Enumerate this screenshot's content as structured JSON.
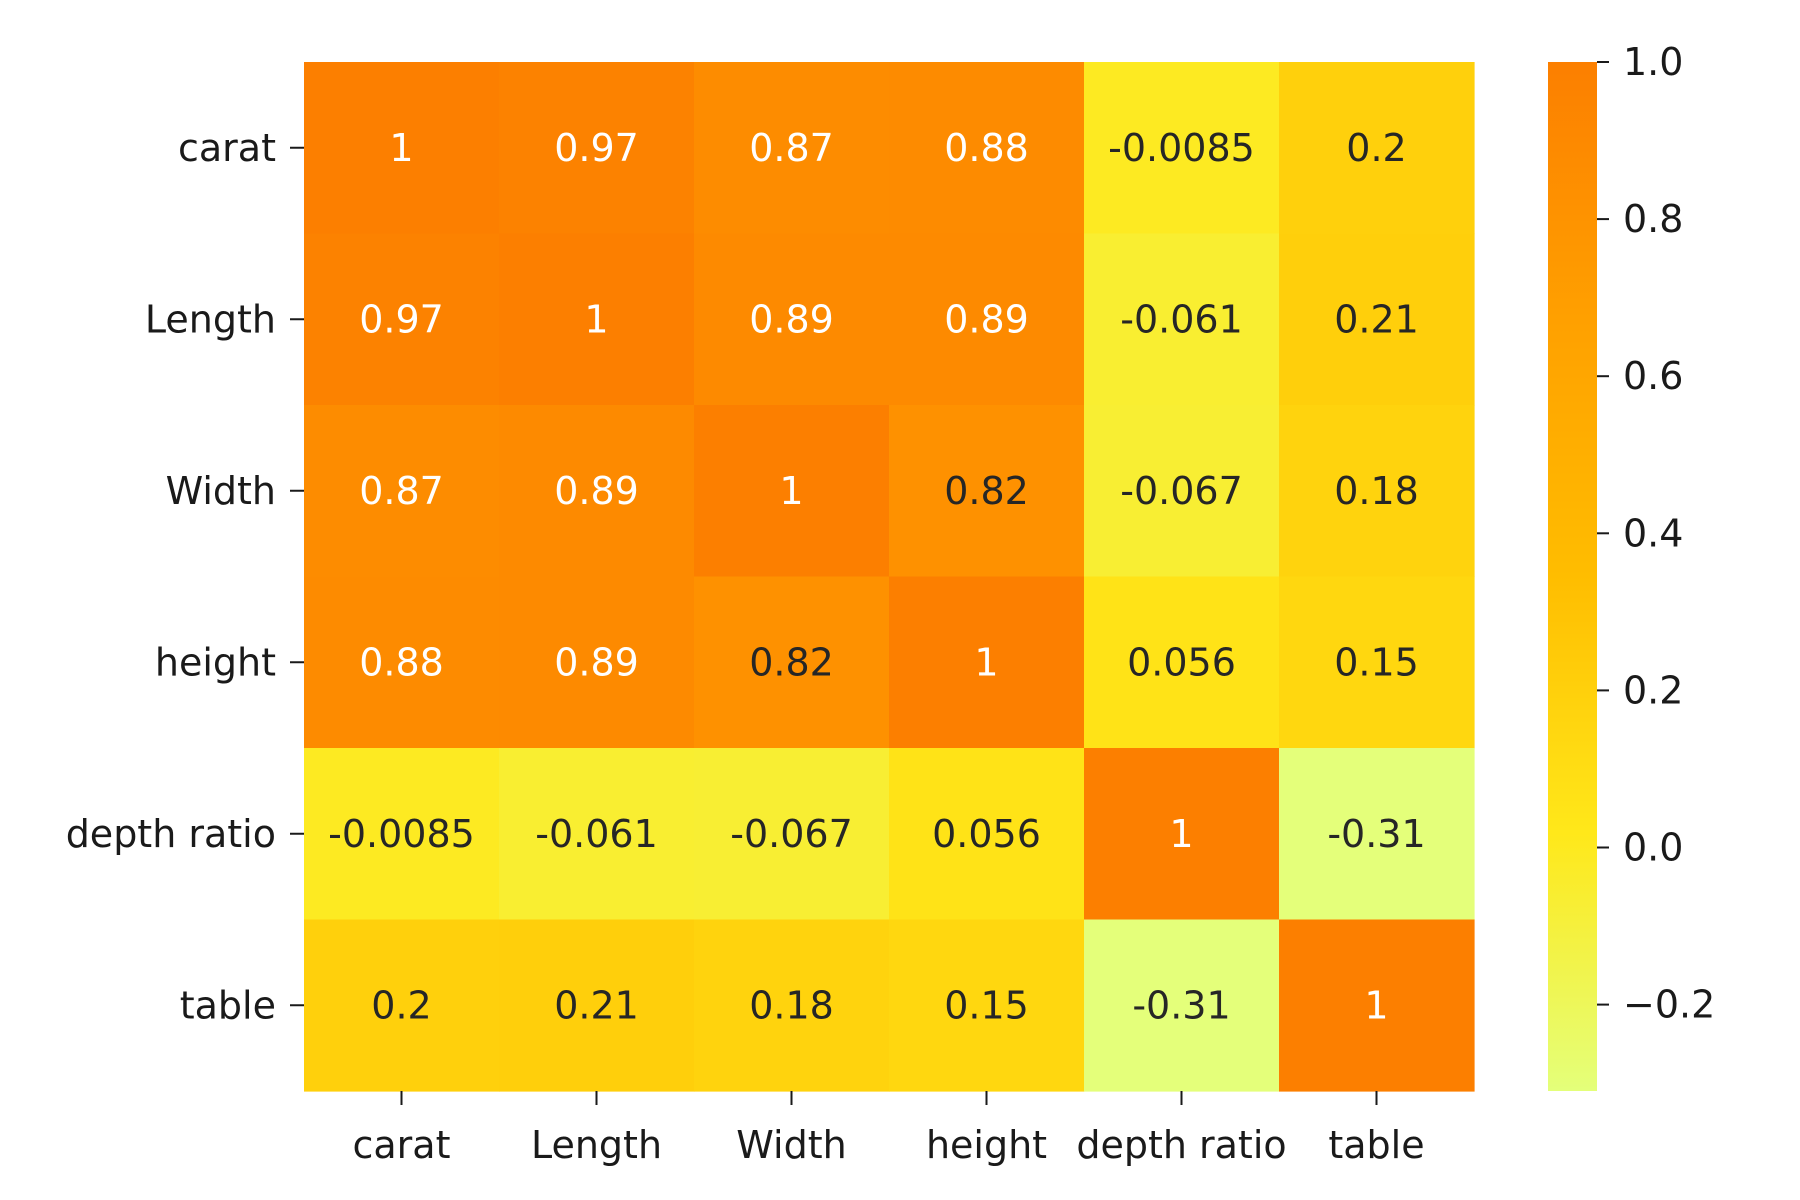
{
  "chart_data": {
    "type": "heatmap",
    "title": "",
    "xlabel": "",
    "ylabel": "",
    "x_categories": [
      "carat",
      "Length",
      "Width",
      "height",
      "depth ratio",
      "table"
    ],
    "y_categories": [
      "carat",
      "Length",
      "Width",
      "height",
      "depth ratio",
      "table"
    ],
    "values": [
      [
        1,
        0.97,
        0.87,
        0.88,
        -0.0085,
        0.2
      ],
      [
        0.97,
        1,
        0.89,
        0.89,
        -0.061,
        0.21
      ],
      [
        0.87,
        0.89,
        1,
        0.82,
        -0.067,
        0.18
      ],
      [
        0.88,
        0.89,
        0.82,
        1,
        0.056,
        0.15
      ],
      [
        -0.0085,
        -0.061,
        -0.067,
        0.056,
        1,
        -0.31
      ],
      [
        0.2,
        0.21,
        0.18,
        0.15,
        -0.31,
        1
      ]
    ],
    "annotations": [
      [
        "1",
        "0.97",
        "0.87",
        "0.88",
        "-0.0085",
        "0.2"
      ],
      [
        "0.97",
        "1",
        "0.89",
        "0.89",
        "-0.061",
        "0.21"
      ],
      [
        "0.87",
        "0.89",
        "1",
        "0.82",
        "-0.067",
        "0.18"
      ],
      [
        "0.88",
        "0.89",
        "0.82",
        "1",
        "0.056",
        "0.15"
      ],
      [
        "-0.0085",
        "-0.061",
        "-0.067",
        "0.056",
        "1",
        "-0.31"
      ],
      [
        "0.2",
        "0.21",
        "0.18",
        "0.15",
        "-0.31",
        "1"
      ]
    ],
    "colorbar": {
      "range": [
        -0.31,
        1.0
      ],
      "ticks": [
        1.0,
        0.8,
        0.6,
        0.4,
        0.2,
        0.0,
        -0.2
      ],
      "tick_labels": [
        "1.0",
        "0.8",
        "0.6",
        "0.4",
        "0.2",
        "0.0",
        "−0.2"
      ]
    },
    "colormap": {
      "name": "Wistia",
      "stops": [
        "#e4ff7a",
        "#ffe81a",
        "#ffbd00",
        "#ffa000",
        "#fc7f00"
      ]
    },
    "grid": false,
    "legend": "colorbar-right"
  }
}
